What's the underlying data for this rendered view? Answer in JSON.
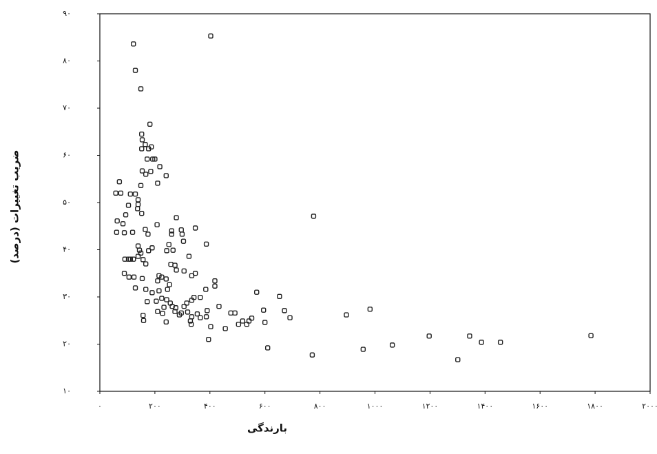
{
  "chart_data": {
    "type": "scatter",
    "xlabel": "بارندگی",
    "ylabel": "ضریب تغییرات (درصد)",
    "color": "#222222",
    "xlim": [
      0,
      2000
    ],
    "xticks": [
      {
        "value": 0,
        "label": "۰"
      },
      {
        "value": 200,
        "label": "۲۰۰"
      },
      {
        "value": 400,
        "label": "۴۰۰"
      },
      {
        "value": 600,
        "label": "۶۰۰"
      },
      {
        "value": 800,
        "label": "۸۰۰"
      },
      {
        "value": 1000,
        "label": "۱۰۰۰"
      },
      {
        "value": 1200,
        "label": "۱۲۰۰"
      },
      {
        "value": 1400,
        "label": "۱۴۰۰"
      },
      {
        "value": 1600,
        "label": "۱۶۰۰"
      },
      {
        "value": 1800,
        "label": "۱۸۰۰"
      },
      {
        "value": 2000,
        "label": "۲۰۰۰"
      }
    ],
    "ylim": [
      10,
      90
    ],
    "yticks": [
      {
        "value": 10,
        "label": "۱۰"
      },
      {
        "value": 20,
        "label": "۲۰"
      },
      {
        "value": 30,
        "label": "۳۰"
      },
      {
        "value": 40,
        "label": "۴۰"
      },
      {
        "value": 50,
        "label": "۵۰"
      },
      {
        "value": 60,
        "label": "۶۰"
      },
      {
        "value": 70,
        "label": "۷۰"
      },
      {
        "value": 80,
        "label": "۸۰"
      },
      {
        "value": 90,
        "label": "۹۰"
      }
    ],
    "x": [
      122,
      403,
      129,
      149,
      182,
      152,
      154,
      165,
      177,
      187,
      152,
      172,
      192,
      200,
      218,
      185,
      154,
      210,
      149,
      167,
      241,
      71,
      58,
      76,
      111,
      129,
      139,
      139,
      104,
      137,
      152,
      94,
      63,
      84,
      208,
      61,
      89,
      119,
      165,
      278,
      261,
      261,
      296,
      299,
      304,
      347,
      387,
      175,
      190,
      177,
      139,
      144,
      149,
      139,
      157,
      167,
      104,
      111,
      122,
      91,
      89,
      106,
      124,
      154,
      251,
      243,
      266,
      324,
      258,
      273,
      278,
      306,
      334,
      347,
      215,
      225,
      241,
      210,
      253,
      246,
      215,
      167,
      190,
      129,
      172,
      205,
      225,
      243,
      256,
      263,
      276,
      306,
      316,
      334,
      342,
      365,
      385,
      418,
      418,
      210,
      233,
      228,
      273,
      289,
      296,
      319,
      334,
      354,
      365,
      390,
      387,
      403,
      433,
      157,
      159,
      241,
      329,
      332,
      395,
      456,
      476,
      491,
      504,
      519,
      534,
      542,
      552,
      570,
      595,
      600,
      610,
      653,
      671,
      691,
      777,
      772,
      896,
      957,
      982,
      1063,
      1197,
      1344,
      1301,
      1387,
      1456,
      1785
    ],
    "y": [
      83.6,
      85.3,
      78.0,
      74.1,
      66.6,
      64.5,
      63.3,
      62.3,
      61.4,
      61.8,
      61.4,
      59.2,
      59.2,
      59.2,
      57.6,
      56.6,
      56.7,
      54.1,
      53.6,
      56.0,
      55.7,
      54.4,
      52.0,
      52.0,
      51.8,
      51.8,
      50.6,
      49.6,
      49.4,
      48.7,
      47.7,
      47.4,
      46.1,
      45.5,
      45.3,
      43.7,
      43.6,
      43.7,
      44.3,
      46.8,
      44.0,
      43.3,
      44.2,
      43.3,
      41.8,
      44.6,
      41.2,
      43.3,
      40.4,
      39.8,
      40.8,
      39.9,
      39.3,
      38.6,
      37.9,
      37.0,
      38.0,
      38.0,
      38.0,
      38.0,
      35.0,
      34.2,
      34.2,
      33.9,
      41.1,
      39.8,
      39.9,
      38.6,
      36.9,
      36.7,
      35.7,
      35.5,
      34.5,
      35.0,
      34.5,
      34.2,
      33.8,
      33.4,
      32.6,
      31.6,
      31.3,
      31.6,
      30.9,
      31.9,
      29.0,
      29.1,
      29.7,
      29.4,
      28.7,
      28.0,
      27.7,
      28.0,
      28.7,
      29.3,
      29.9,
      29.9,
      31.6,
      33.4,
      32.3,
      26.9,
      27.8,
      26.5,
      26.9,
      26.2,
      26.6,
      26.8,
      25.8,
      26.4,
      25.6,
      27.1,
      25.8,
      23.7,
      28.0,
      26.1,
      25.0,
      24.7,
      24.9,
      24.2,
      21.0,
      23.3,
      26.6,
      26.6,
      24.2,
      24.9,
      24.2,
      24.9,
      25.5,
      31.0,
      27.2,
      24.6,
      19.2,
      30.1,
      27.1,
      25.6,
      47.1,
      17.7,
      26.2,
      18.9,
      27.4,
      19.8,
      21.7,
      21.7,
      16.7,
      20.4,
      20.4,
      21.8
    ]
  }
}
